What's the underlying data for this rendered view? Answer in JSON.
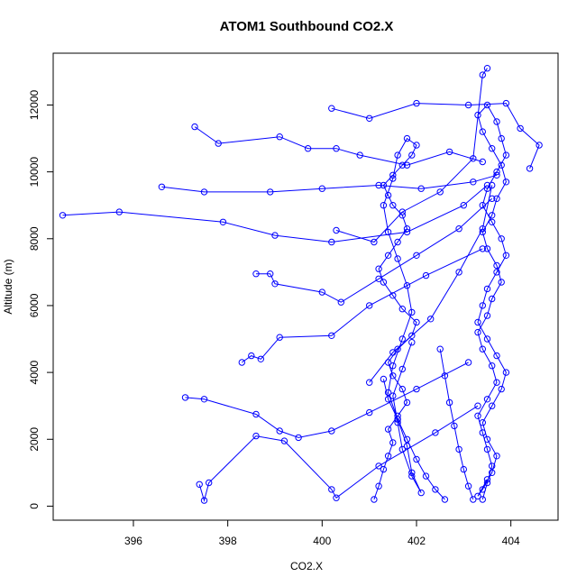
{
  "chart_data": {
    "type": "scatter",
    "title": "ATOM1 Southbound CO2.X",
    "xlabel": "CO2.X",
    "ylabel": "Altitude (m)",
    "xlim": [
      394.3,
      405.0
    ],
    "ylim": [
      -420,
      13550
    ],
    "xticks": [
      396,
      398,
      400,
      402,
      404
    ],
    "yticks": [
      0,
      2000,
      4000,
      6000,
      8000,
      10000,
      12000
    ],
    "grid": false,
    "legend": "none",
    "series_color": "#0000ff",
    "markers": "open-circles",
    "connected": true,
    "series": [
      {
        "x": [
          401.1,
          401.2,
          401.3,
          401.4,
          401.5,
          401.4,
          401.6,
          401.8,
          401.7,
          401.5,
          401.4,
          401.6,
          401.9,
          402.0,
          401.7,
          401.5,
          401.3,
          401.2,
          401.4,
          401.6,
          401.8,
          401.7,
          401.5,
          401.4,
          401.3,
          401.5,
          401.7,
          401.9,
          402.0,
          401.8,
          401.6,
          401.5,
          401.3,
          401.4,
          401.6,
          401.8,
          401.9,
          401.7,
          401.5,
          401.4,
          401.6,
          401.8,
          401.9,
          402.1,
          401.9,
          401.7,
          401.6,
          401.5,
          401.7,
          401.9
        ],
        "y": [
          200,
          600,
          1100,
          1500,
          1900,
          2300,
          2700,
          3100,
          3500,
          3900,
          4300,
          4700,
          5100,
          5500,
          5900,
          6300,
          6700,
          7100,
          7500,
          7900,
          8300,
          8700,
          9000,
          9300,
          9600,
          9900,
          10200,
          10500,
          10800,
          11000,
          10500,
          9800,
          9000,
          8200,
          7400,
          6600,
          5800,
          5000,
          4200,
          3400,
          2600,
          1800,
          1000,
          400,
          900,
          1700,
          2500,
          3300,
          4100,
          4900
        ]
      },
      {
        "x": [
          403.4,
          403.5,
          403.6,
          403.5,
          403.4,
          403.3,
          403.5,
          403.7,
          403.6,
          403.4,
          403.3,
          403.5,
          403.6,
          403.8,
          403.7,
          403.5,
          403.4,
          403.6,
          403.7,
          403.9,
          403.8,
          403.6,
          403.4,
          403.3,
          403.5,
          403.7,
          403.8,
          403.9,
          403.7,
          403.5,
          403.4,
          403.6,
          403.8,
          403.9,
          403.7,
          403.5,
          403.4,
          403.3,
          403.5,
          403.7,
          403.9,
          403.8,
          403.6,
          403.4,
          403.5,
          403.7,
          403.6,
          403.4,
          403.3,
          403.5
        ],
        "y": [
          200,
          700,
          1200,
          1700,
          2200,
          2700,
          3200,
          3700,
          4200,
          4700,
          5200,
          5700,
          6200,
          6700,
          7200,
          7700,
          8200,
          8700,
          9200,
          9700,
          10200,
          10700,
          11200,
          11700,
          12000,
          11500,
          11000,
          10500,
          10000,
          9500,
          9000,
          8500,
          8000,
          7500,
          7000,
          6500,
          6000,
          5500,
          5000,
          4500,
          4000,
          3500,
          3000,
          2500,
          2000,
          1500,
          1000,
          500,
          300,
          800
        ]
      },
      {
        "x": [
          394.5,
          395.7,
          397.9,
          399.0,
          400.2,
          401.8,
          403.0,
          403.5
        ],
        "y": [
          8700,
          8800,
          8500,
          8100,
          7900,
          8200,
          9000,
          9600
        ]
      },
      {
        "x": [
          396.6,
          397.5,
          398.9,
          400.0,
          401.2,
          402.1,
          403.2,
          403.7
        ],
        "y": [
          9550,
          9400,
          9400,
          9500,
          9600,
          9500,
          9700,
          9900
        ]
      },
      {
        "x": [
          397.3,
          397.8,
          399.1,
          399.7,
          400.3,
          400.8,
          401.8,
          402.7,
          403.4
        ],
        "y": [
          11350,
          10850,
          11050,
          10700,
          10700,
          10500,
          10200,
          10600,
          10300
        ]
      },
      {
        "x": [
          398.6,
          398.9,
          399.0,
          400.0,
          400.4,
          401.2,
          402.0,
          402.9,
          403.6
        ],
        "y": [
          6950,
          6950,
          6650,
          6400,
          6100,
          6800,
          7500,
          8300,
          9200
        ]
      },
      {
        "x": [
          398.3,
          398.5,
          398.7,
          399.1,
          400.2,
          401.0,
          402.2,
          403.4
        ],
        "y": [
          4300,
          4500,
          4400,
          5050,
          5100,
          6000,
          6900,
          7700
        ]
      },
      {
        "x": [
          397.1,
          397.5,
          398.6,
          399.1,
          399.5,
          400.2,
          401.0,
          402.0,
          403.1
        ],
        "y": [
          3250,
          3200,
          2750,
          2250,
          2050,
          2250,
          2800,
          3500,
          4300
        ]
      },
      {
        "x": [
          397.4,
          397.5,
          397.6,
          398.6,
          399.2,
          400.2,
          400.3,
          401.2,
          402.4,
          403.3
        ],
        "y": [
          650,
          170,
          700,
          2100,
          1950,
          500,
          250,
          1200,
          2200,
          3000
        ]
      },
      {
        "x": [
          400.2,
          401.0,
          402.0,
          403.1,
          403.9,
          404.2,
          404.6,
          404.4
        ],
        "y": [
          11900,
          11600,
          12050,
          12000,
          12050,
          11300,
          10800,
          10100
        ]
      },
      {
        "x": [
          400.3,
          401.1,
          401.7,
          402.5,
          403.2,
          403.4,
          403.5
        ],
        "y": [
          8250,
          7900,
          8800,
          9400,
          10400,
          12900,
          13100
        ]
      },
      {
        "x": [
          401.0,
          401.5,
          402.3,
          402.9,
          403.4,
          403.6
        ],
        "y": [
          3700,
          4600,
          5600,
          7000,
          8300,
          9600
        ]
      },
      {
        "x": [
          402.6,
          402.4,
          402.2,
          402.0,
          401.8,
          401.6,
          401.4,
          401.3
        ],
        "y": [
          200,
          500,
          900,
          1400,
          2000,
          2600,
          3200,
          3800
        ]
      },
      {
        "x": [
          403.2,
          403.1,
          403.0,
          402.9,
          402.8,
          402.7,
          402.6,
          402.5
        ],
        "y": [
          200,
          600,
          1100,
          1700,
          2400,
          3100,
          3900,
          4700
        ]
      }
    ]
  }
}
